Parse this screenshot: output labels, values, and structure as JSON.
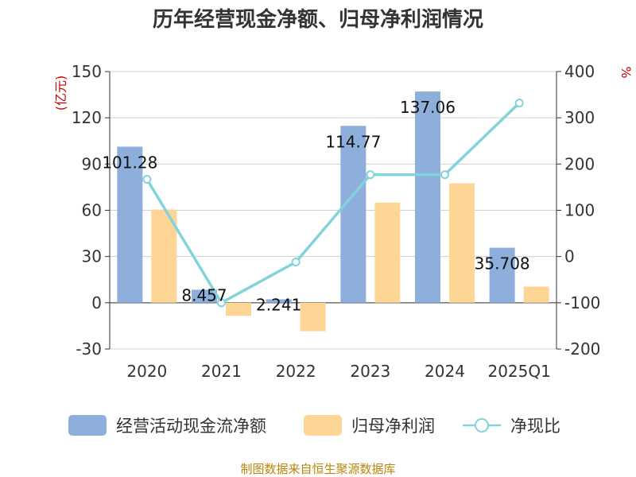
{
  "chart_data": {
    "type": "bar",
    "title": "历年经营现金净额、归母净利润情况",
    "categories": [
      "2020",
      "2021",
      "2022",
      "2023",
      "2024",
      "2025Q1"
    ],
    "left_axis": {
      "unit": "(亿元)",
      "ylim": [
        -30,
        150
      ],
      "ticks": [
        "150",
        "120",
        "90",
        "60",
        "30",
        "0",
        "-30"
      ]
    },
    "right_axis": {
      "unit": "%",
      "ylim": [
        -200,
        400
      ],
      "ticks": [
        "400",
        "300",
        "200",
        "100",
        "0",
        "-100",
        "-200"
      ]
    },
    "series": [
      {
        "name": "经营活动现金流净额",
        "type": "bar",
        "axis": "left",
        "color": "#8eaedb",
        "values": [
          101.28,
          8.457,
          2.241,
          114.77,
          137.06,
          35.708
        ],
        "labels": [
          "101.28",
          "8.457",
          "2.241",
          "114.77",
          "137.06",
          "35.708"
        ]
      },
      {
        "name": "归母净利润",
        "type": "bar",
        "axis": "left",
        "color": "#fdd696",
        "values": [
          60.5,
          -8.5,
          -18.5,
          65.0,
          77.5,
          10.5
        ]
      },
      {
        "name": "净现比",
        "type": "line",
        "axis": "right",
        "color": "#83d4da",
        "values": [
          167,
          -100,
          -12,
          177,
          177,
          332
        ]
      }
    ],
    "grid": true,
    "legend_position": "bottom"
  },
  "footer": {
    "source": "制图数据来自恒生聚源数据库"
  }
}
